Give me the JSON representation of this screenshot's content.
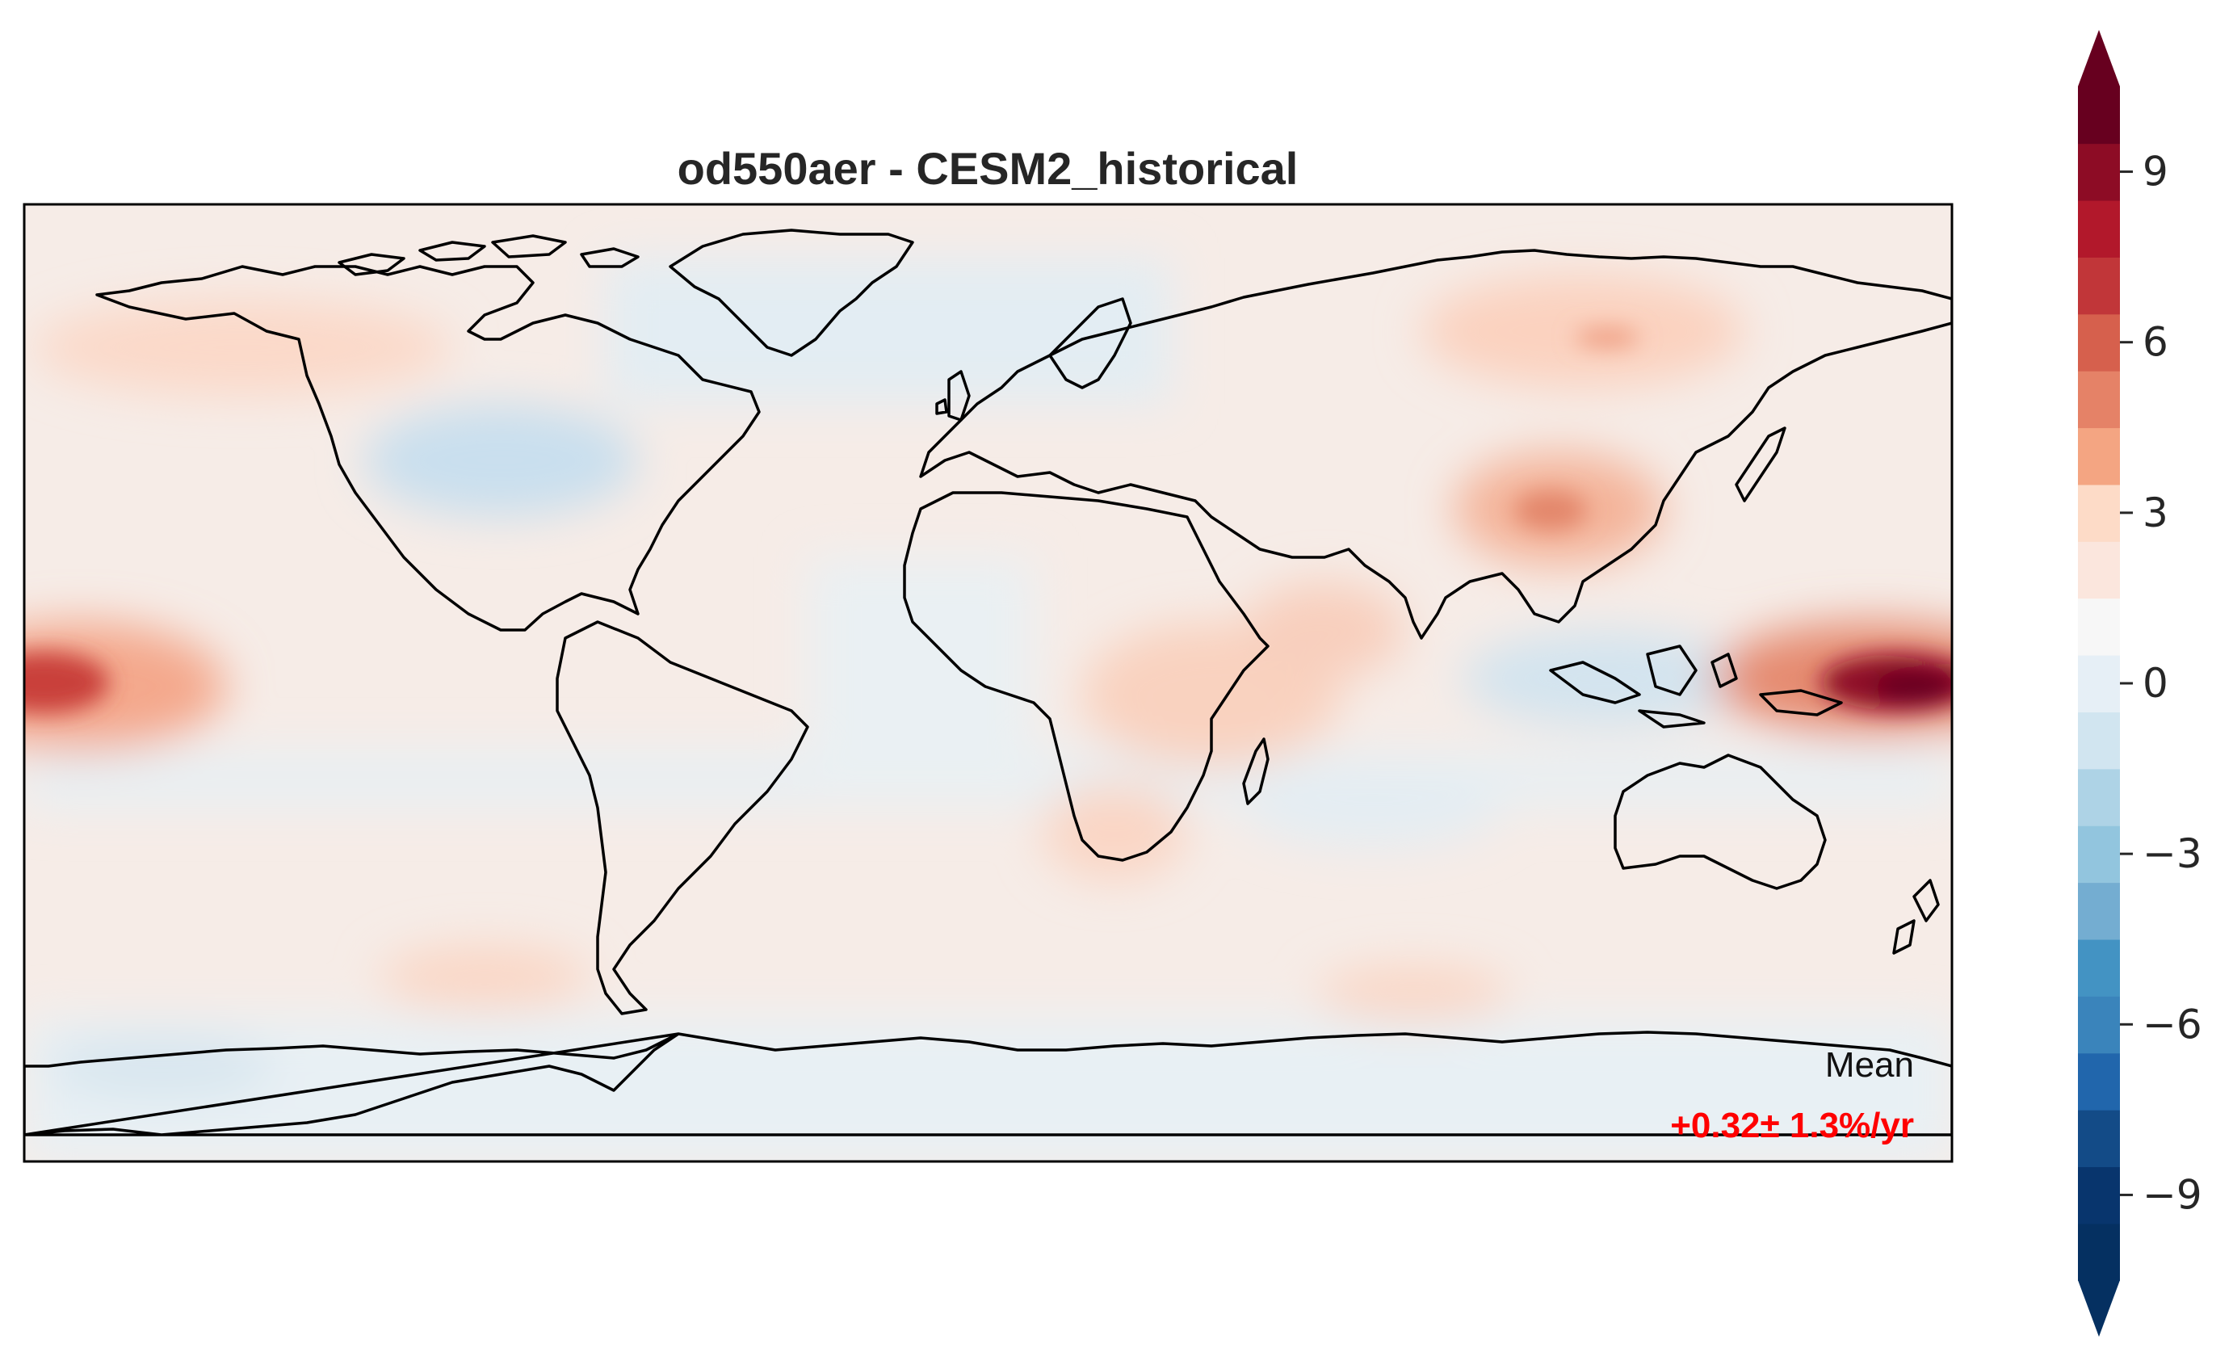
{
  "map": {
    "title": "od550aer - CESM2_historical",
    "projection": "PlateCarree",
    "lon_range": [
      -180,
      180
    ],
    "lat_range": [
      -90,
      90
    ],
    "annotation": {
      "label": "Mean",
      "value": "+0.32± 1.3%/yr",
      "value_color": "#ff0000"
    },
    "anomaly_regions": [
      {
        "region": "Central Pacific (west edge)",
        "lon": -178,
        "lat": 2,
        "value": 7
      },
      {
        "region": "Western Pacific (east edge)",
        "lon": 175,
        "lat": 2,
        "value": 9
      },
      {
        "region": "Eastern China",
        "lon": 112,
        "lat": 30,
        "value": 4
      },
      {
        "region": "Northern Siberia",
        "lon": 95,
        "lat": 65,
        "value": 3
      },
      {
        "region": "Central Africa",
        "lon": 30,
        "lat": 0,
        "value": 2
      },
      {
        "region": "Eastern USA / North Atlantic",
        "lon": -70,
        "lat": 38,
        "value": -2
      },
      {
        "region": "Maritime Continent",
        "lon": 110,
        "lat": -2,
        "value": -2
      }
    ]
  },
  "colorbar": {
    "vmin": -10.5,
    "vmax": 10.5,
    "step": 1.5,
    "extend": "both",
    "ticks": [
      9,
      6,
      3,
      0,
      -3,
      -6,
      -9
    ],
    "tick_labels": [
      "9",
      "6",
      "3",
      "0",
      "−3",
      "−6",
      "−9"
    ],
    "colors_low_to_high": [
      "#053061",
      "#08356d",
      "#134b87",
      "#2166ac",
      "#3a84bb",
      "#4393c3",
      "#74add1",
      "#92c5de",
      "#aed3e6",
      "#d1e5f0",
      "#e6eff6",
      "#f7f7f7",
      "#fbe6dd",
      "#fddbc7",
      "#f4a582",
      "#e58267",
      "#d6604d",
      "#c13639",
      "#b2182b",
      "#8d0c25",
      "#67001f"
    ]
  }
}
